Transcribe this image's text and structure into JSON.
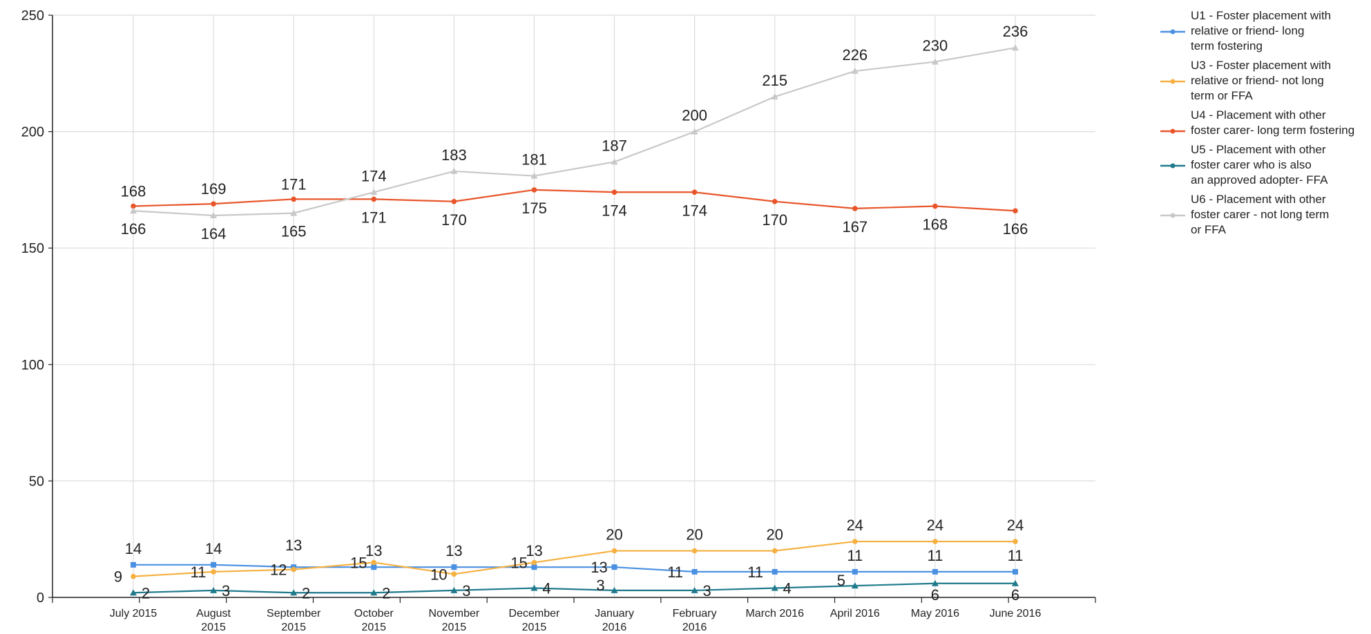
{
  "chart_data": {
    "type": "line",
    "categories": [
      [
        "July 2015"
      ],
      [
        "August",
        "2015"
      ],
      [
        "September",
        "2015"
      ],
      [
        "October",
        "2015"
      ],
      [
        "November",
        "2015"
      ],
      [
        "December",
        "2015"
      ],
      [
        "January",
        "2016"
      ],
      [
        "February",
        "2016"
      ],
      [
        "March 2016"
      ],
      [
        "April 2016"
      ],
      [
        "May 2016"
      ],
      [
        "June 2016"
      ]
    ],
    "ylim": [
      0,
      250
    ],
    "yticks": [
      0,
      50,
      100,
      150,
      200,
      250
    ],
    "grid": true,
    "legend_position": "right",
    "series": [
      {
        "name": "U1 - Foster placement with relative or friend- long term fostering",
        "legend_lines": [
          "U1 - Foster placement with",
          "relative or friend- long",
          "term fostering"
        ],
        "color": "#4a90e2",
        "marker": "square",
        "values": [
          14,
          14,
          13,
          13,
          13,
          13,
          13,
          11,
          11,
          11,
          11,
          11
        ]
      },
      {
        "name": "U3 - Foster placement with relative or friend- not long term or FFA",
        "legend_lines": [
          "U3 - Foster placement with",
          "relative or friend- not long",
          "term or FFA"
        ],
        "color": "#f5b041",
        "marker": "circle",
        "values": [
          9,
          11,
          12,
          15,
          10,
          15,
          20,
          20,
          20,
          24,
          24,
          24
        ]
      },
      {
        "name": "U4 - Placement with other foster carer- long term fostering",
        "legend_lines": [
          "U4 - Placement with other",
          "foster carer- long term fostering"
        ],
        "color": "#e8552a",
        "marker": "circle",
        "values": [
          168,
          169,
          171,
          171,
          170,
          175,
          174,
          174,
          170,
          167,
          168,
          166
        ]
      },
      {
        "name": "U5 - Placement with other foster carer who is also an approved adopter- FFA",
        "legend_lines": [
          "U5 - Placement with other",
          "foster carer who is also",
          "an approved adopter- FFA"
        ],
        "color": "#1f7a8c",
        "marker": "triangle",
        "values": [
          2,
          3,
          2,
          2,
          3,
          4,
          3,
          3,
          4,
          5,
          6,
          6
        ]
      },
      {
        "name": "U6 - Placement with other foster carer - not long term or FFA",
        "legend_lines": [
          "U6 - Placement with other",
          "foster carer - not long term",
          "or FFA"
        ],
        "color": "#c8c8c8",
        "marker": "triangle",
        "values": [
          166,
          164,
          165,
          174,
          183,
          181,
          187,
          200,
          215,
          226,
          230,
          236
        ]
      }
    ]
  }
}
